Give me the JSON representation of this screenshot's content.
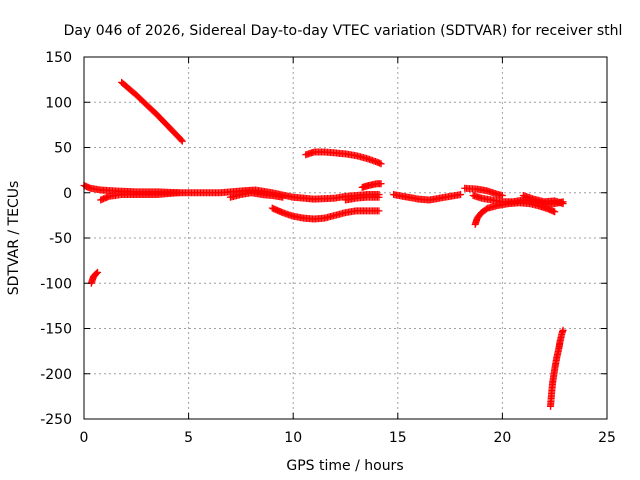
{
  "chart_data": {
    "type": "scatter",
    "title": "Day 046 of 2026, Sidereal Day-to-day VTEC variation (SDTVAR) for receiver sthl",
    "xlabel": "GPS time / hours",
    "ylabel": "SDTVAR / TECUs",
    "xlim": [
      0,
      25
    ],
    "ylim": [
      -250,
      150
    ],
    "xticks": [
      0,
      5,
      10,
      15,
      20,
      25
    ],
    "yticks": [
      -250,
      -200,
      -150,
      -100,
      -50,
      0,
      50,
      100,
      150
    ],
    "grid": true,
    "marker": "+",
    "color": "#ff0000",
    "series": [
      {
        "points": [
          [
            0.0,
            8
          ],
          [
            0.3,
            5
          ],
          [
            0.8,
            3
          ],
          [
            1.5,
            2
          ],
          [
            2.5,
            1
          ],
          [
            3.5,
            1
          ],
          [
            4.5,
            0
          ],
          [
            5.5,
            0
          ],
          [
            6.5,
            0
          ],
          [
            7.5,
            2
          ],
          [
            8.2,
            3
          ],
          [
            9.0,
            0
          ],
          [
            10.0,
            -5
          ],
          [
            11.0,
            -7
          ],
          [
            12.0,
            -6
          ],
          [
            12.5,
            -4
          ],
          [
            13.5,
            -2
          ],
          [
            14.1,
            -2
          ]
        ]
      },
      {
        "points": [
          [
            0.8,
            -8
          ],
          [
            1.2,
            -4
          ],
          [
            1.8,
            -2
          ],
          [
            2.5,
            -2
          ],
          [
            3.5,
            -2
          ],
          [
            4.5,
            0
          ]
        ]
      },
      {
        "points": [
          [
            7.0,
            -5
          ],
          [
            7.5,
            -2
          ],
          [
            8.0,
            0
          ],
          [
            8.5,
            -2
          ],
          [
            9.0,
            -3
          ],
          [
            9.5,
            -5
          ]
        ]
      },
      {
        "points": [
          [
            12.5,
            -8
          ],
          [
            13.0,
            -6
          ],
          [
            13.5,
            -5
          ],
          [
            14.1,
            -5
          ]
        ]
      },
      {
        "points": [
          [
            1.8,
            122
          ],
          [
            2.5,
            108
          ],
          [
            3.0,
            97
          ],
          [
            3.5,
            86
          ],
          [
            4.0,
            74
          ],
          [
            4.5,
            62
          ],
          [
            4.7,
            57
          ]
        ]
      },
      {
        "points": [
          [
            10.6,
            42
          ],
          [
            11.0,
            45
          ],
          [
            11.5,
            45
          ],
          [
            12.0,
            44
          ],
          [
            12.5,
            43
          ],
          [
            13.0,
            41
          ],
          [
            13.5,
            38
          ],
          [
            14.0,
            34
          ],
          [
            14.2,
            32
          ]
        ]
      },
      {
        "points": [
          [
            9.0,
            -17
          ],
          [
            9.5,
            -22
          ],
          [
            10.0,
            -26
          ],
          [
            10.5,
            -28
          ],
          [
            11.0,
            -29
          ],
          [
            11.5,
            -28
          ],
          [
            12.0,
            -25
          ],
          [
            12.5,
            -22
          ],
          [
            13.0,
            -20
          ],
          [
            13.5,
            -20
          ],
          [
            14.1,
            -20
          ]
        ]
      },
      {
        "points": [
          [
            13.3,
            6
          ],
          [
            13.6,
            8
          ],
          [
            14.0,
            10
          ],
          [
            14.2,
            10
          ]
        ]
      },
      {
        "points": [
          [
            14.8,
            -2
          ],
          [
            15.5,
            -5
          ],
          [
            16.0,
            -7
          ],
          [
            16.5,
            -8
          ],
          [
            17.0,
            -6
          ],
          [
            17.5,
            -4
          ],
          [
            18.0,
            -2
          ]
        ]
      },
      {
        "points": [
          [
            18.2,
            5
          ],
          [
            18.8,
            4
          ],
          [
            19.3,
            2
          ],
          [
            19.8,
            -2
          ],
          [
            20.0,
            -3
          ]
        ]
      },
      {
        "points": [
          [
            18.6,
            -3
          ],
          [
            19.0,
            -6
          ],
          [
            19.5,
            -8
          ],
          [
            20.0,
            -10
          ],
          [
            20.5,
            -10
          ],
          [
            21.0,
            -8
          ],
          [
            21.5,
            -10
          ],
          [
            22.0,
            -12
          ],
          [
            22.5,
            -12
          ],
          [
            22.9,
            -10
          ]
        ]
      },
      {
        "points": [
          [
            18.7,
            -35
          ],
          [
            18.8,
            -28
          ],
          [
            19.0,
            -22
          ],
          [
            19.3,
            -17
          ],
          [
            19.8,
            -14
          ],
          [
            20.3,
            -12
          ],
          [
            20.8,
            -11
          ],
          [
            21.3,
            -12
          ],
          [
            21.8,
            -15
          ],
          [
            22.2,
            -18
          ],
          [
            22.5,
            -21
          ]
        ]
      },
      {
        "points": [
          [
            21.0,
            -3
          ],
          [
            21.5,
            -7
          ],
          [
            22.0,
            -10
          ],
          [
            22.5,
            -9
          ],
          [
            22.9,
            -12
          ]
        ]
      },
      {
        "points": [
          [
            0.35,
            -100
          ],
          [
            0.45,
            -93
          ],
          [
            0.55,
            -90
          ],
          [
            0.65,
            -88
          ]
        ]
      },
      {
        "points": [
          [
            22.3,
            -236
          ],
          [
            22.35,
            -222
          ],
          [
            22.4,
            -210
          ],
          [
            22.5,
            -195
          ],
          [
            22.6,
            -182
          ],
          [
            22.7,
            -172
          ],
          [
            22.75,
            -165
          ],
          [
            22.85,
            -155
          ],
          [
            22.9,
            -152
          ]
        ]
      }
    ]
  }
}
